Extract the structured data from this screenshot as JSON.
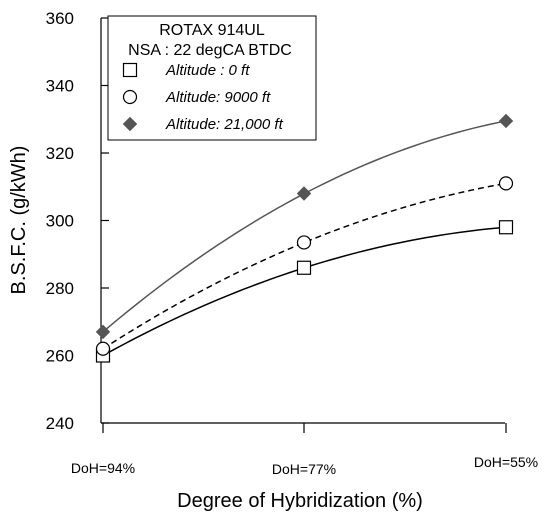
{
  "chart_data": {
    "type": "line",
    "title": "",
    "xlabel": "Degree of Hybridization (%)",
    "ylabel": "B.S.F.C. (g/kWh)",
    "categories": [
      "DoH=94%",
      "DoH=77%",
      "DoH=55%"
    ],
    "ylim": [
      240,
      360
    ],
    "yticks": [
      240,
      260,
      280,
      300,
      320,
      340,
      360
    ],
    "grid": false,
    "legend": {
      "placement": "top-left",
      "title_lines": [
        "ROTAX 914UL",
        "NSA : 22 degCA BTDC"
      ]
    },
    "series": [
      {
        "name": "Altitude : 0 ft",
        "values": [
          260,
          286,
          298
        ],
        "marker": "open-square",
        "line": "solid",
        "color": "#000000"
      },
      {
        "name": "Altitude: 9000 ft",
        "values": [
          262,
          293.5,
          311
        ],
        "marker": "open-circle",
        "line": "dashed",
        "color": "#000000"
      },
      {
        "name": "Altitude: 21,000 ft",
        "values": [
          267,
          308,
          329.5
        ],
        "marker": "filled-diamond",
        "line": "solid",
        "color": "#555555"
      }
    ]
  }
}
